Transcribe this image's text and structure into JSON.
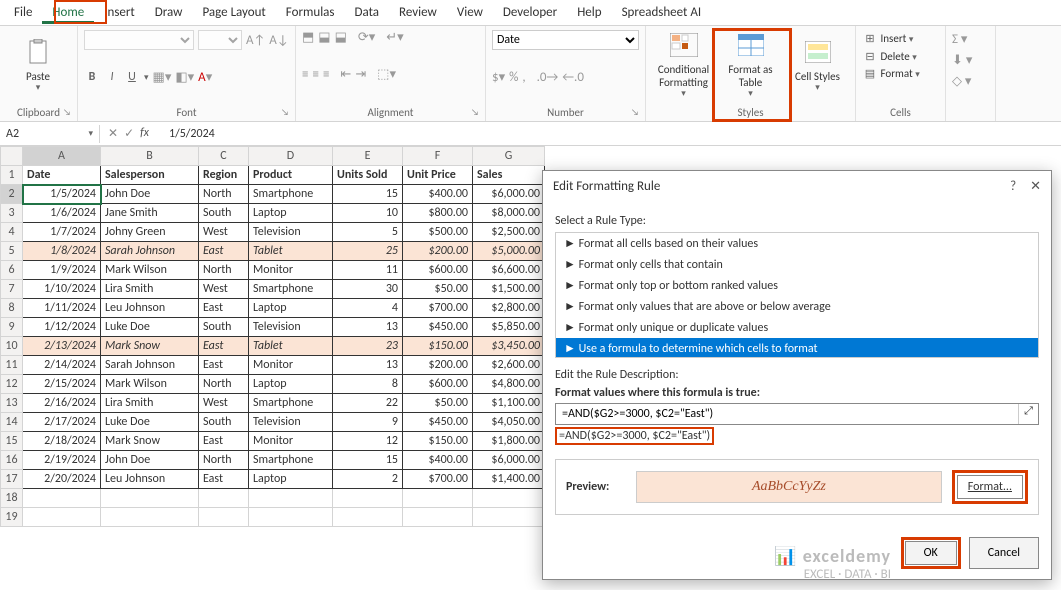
{
  "menu": {
    "items": [
      "File",
      "Home",
      "Insert",
      "Draw",
      "Page Layout",
      "Formulas",
      "Data",
      "Review",
      "View",
      "Developer",
      "Help",
      "Spreadsheet AI"
    ],
    "active_index": 1
  },
  "ribbon": {
    "clipboard": {
      "label": "Clipboard",
      "paste": "Paste"
    },
    "font": {
      "label": "Font",
      "bold": "B",
      "italic": "I",
      "underline": "U"
    },
    "alignment": {
      "label": "Alignment"
    },
    "number": {
      "label": "Number",
      "format": "Date"
    },
    "styles": {
      "label": "Styles",
      "cond": "Conditional Formatting",
      "table": "Format as Table",
      "cell": "Cell Styles"
    },
    "cells": {
      "label": "Cells",
      "insert": "Insert",
      "delete": "Delete",
      "format": "Format"
    }
  },
  "namebox": "A2",
  "formula_bar": "1/5/2024",
  "columns": [
    "A",
    "B",
    "C",
    "D",
    "E",
    "F",
    "G"
  ],
  "header": {
    "A": "Date",
    "B": "Salesperson",
    "C": "Region",
    "D": "Product",
    "E": "Units Sold",
    "F": "Unit Price",
    "G": "Sales"
  },
  "rows": [
    {
      "n": 2,
      "A": "1/5/2024",
      "B": "John Doe",
      "C": "North",
      "D": "Smartphone",
      "E": "15",
      "F": "$400.00",
      "G": "$6,000.00",
      "hl": false
    },
    {
      "n": 3,
      "A": "1/6/2024",
      "B": "Jane Smith",
      "C": "South",
      "D": "Laptop",
      "E": "10",
      "F": "$800.00",
      "G": "$8,000.00",
      "hl": false
    },
    {
      "n": 4,
      "A": "1/7/2024",
      "B": "Johny Green",
      "C": "West",
      "D": "Television",
      "E": "5",
      "F": "$500.00",
      "G": "$2,500.00",
      "hl": false
    },
    {
      "n": 5,
      "A": "1/8/2024",
      "B": "Sarah Johnson",
      "C": "East",
      "D": "Tablet",
      "E": "25",
      "F": "$200.00",
      "G": "$5,000.00",
      "hl": true
    },
    {
      "n": 6,
      "A": "1/9/2024",
      "B": "Mark Wilson",
      "C": "North",
      "D": "Monitor",
      "E": "11",
      "F": "$600.00",
      "G": "$6,600.00",
      "hl": false
    },
    {
      "n": 7,
      "A": "1/10/2024",
      "B": "Lira Smith",
      "C": "West",
      "D": "Smartphone",
      "E": "30",
      "F": "$50.00",
      "G": "$1,500.00",
      "hl": false
    },
    {
      "n": 8,
      "A": "1/11/2024",
      "B": "Leu Johnson",
      "C": "East",
      "D": "Laptop",
      "E": "4",
      "F": "$700.00",
      "G": "$2,800.00",
      "hl": false
    },
    {
      "n": 9,
      "A": "1/12/2024",
      "B": "Luke Doe",
      "C": "South",
      "D": "Television",
      "E": "13",
      "F": "$450.00",
      "G": "$5,850.00",
      "hl": false
    },
    {
      "n": 10,
      "A": "2/13/2024",
      "B": "Mark Snow",
      "C": "East",
      "D": "Tablet",
      "E": "23",
      "F": "$150.00",
      "G": "$3,450.00",
      "hl": true
    },
    {
      "n": 11,
      "A": "2/14/2024",
      "B": "Sarah Johnson",
      "C": "East",
      "D": "Monitor",
      "E": "13",
      "F": "$200.00",
      "G": "$2,600.00",
      "hl": false
    },
    {
      "n": 12,
      "A": "2/15/2024",
      "B": "Mark Wilson",
      "C": "North",
      "D": "Laptop",
      "E": "8",
      "F": "$600.00",
      "G": "$4,800.00",
      "hl": false
    },
    {
      "n": 13,
      "A": "2/16/2024",
      "B": "Lira Smith",
      "C": "West",
      "D": "Smartphone",
      "E": "22",
      "F": "$50.00",
      "G": "$1,100.00",
      "hl": false
    },
    {
      "n": 14,
      "A": "2/17/2024",
      "B": "Luke Doe",
      "C": "South",
      "D": "Television",
      "E": "9",
      "F": "$450.00",
      "G": "$4,050.00",
      "hl": false
    },
    {
      "n": 15,
      "A": "2/18/2024",
      "B": "Mark Snow",
      "C": "East",
      "D": "Monitor",
      "E": "12",
      "F": "$150.00",
      "G": "$1,800.00",
      "hl": false
    },
    {
      "n": 16,
      "A": "2/19/2024",
      "B": "John Doe",
      "C": "North",
      "D": "Smartphone",
      "E": "15",
      "F": "$400.00",
      "G": "$6,000.00",
      "hl": false
    },
    {
      "n": 17,
      "A": "2/20/2024",
      "B": "Leu Johnson",
      "C": "East",
      "D": "Laptop",
      "E": "2",
      "F": "$700.00",
      "G": "$1,400.00",
      "hl": false
    }
  ],
  "dialog": {
    "title": "Edit Formatting Rule",
    "select_label": "Select a Rule Type:",
    "rule_types": [
      "Format all cells based on their values",
      "Format only cells that contain",
      "Format only top or bottom ranked values",
      "Format only values that are above or below average",
      "Format only unique or duplicate values",
      "Use a formula to determine which cells to format"
    ],
    "selected_rule_index": 5,
    "desc_label": "Edit the Rule Description:",
    "formula_label": "Format values where this formula is true:",
    "formula_value": "=AND($G2>=3000, $C2=\"East\")",
    "preview_label": "Preview:",
    "preview_text": "AaBbCcYyZz",
    "format_btn": "Format...",
    "ok": "OK",
    "cancel": "Cancel"
  },
  "watermark": {
    "brand": "exceldemy",
    "sub": "EXCEL · DATA · BI"
  },
  "styling": {
    "highlight_bg": "#fbe4d5",
    "highlight_fg": "#a64b29",
    "accent_border": "#d83b01",
    "excel_green": "#217346",
    "selection_blue": "#0078d4"
  }
}
